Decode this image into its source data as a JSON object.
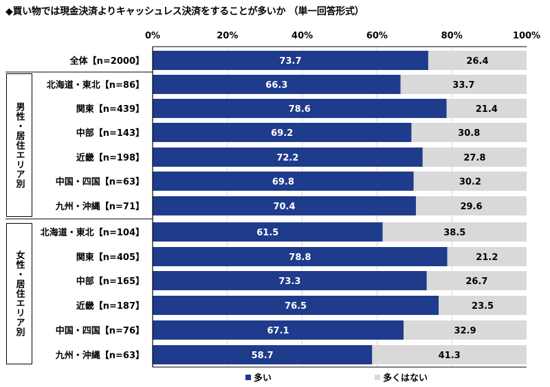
{
  "title": "◆買い物では現金決済よりキャッシュレス決済をすることが多いか （単一回答形式）",
  "colors": {
    "series1": "#1f3b8c",
    "series2": "#d9d9d9"
  },
  "groups": [
    {
      "label": "男性・居住エリア別"
    },
    {
      "label": "女性・居住エリア別"
    }
  ],
  "chart_data": {
    "type": "bar",
    "orientation": "horizontal",
    "stacked": "100%",
    "xlim": [
      0,
      100
    ],
    "x_ticks": [
      "0%",
      "20%",
      "40%",
      "60%",
      "80%",
      "100%"
    ],
    "legend_position": "bottom",
    "categories": [
      "全体【n=2000】",
      "北海道・東北【n=86】",
      "関東【n=439】",
      "中部【n=143】",
      "近畿【n=198】",
      "中国・四国【n=63】",
      "九州・沖縄【n=71】",
      "北海道・東北【n=104】",
      "関東【n=405】",
      "中部【n=165】",
      "近畿【n=187】",
      "中国・四国【n=76】",
      "九州・沖縄【n=63】"
    ],
    "series": [
      {
        "name": "多い",
        "values": [
          73.7,
          66.3,
          78.6,
          69.2,
          72.2,
          69.8,
          70.4,
          61.5,
          78.8,
          73.3,
          76.5,
          67.1,
          58.7
        ]
      },
      {
        "name": "多くはない",
        "values": [
          26.4,
          33.7,
          21.4,
          30.8,
          27.8,
          30.2,
          29.6,
          38.5,
          21.2,
          26.7,
          23.5,
          32.9,
          41.3
        ]
      }
    ]
  }
}
